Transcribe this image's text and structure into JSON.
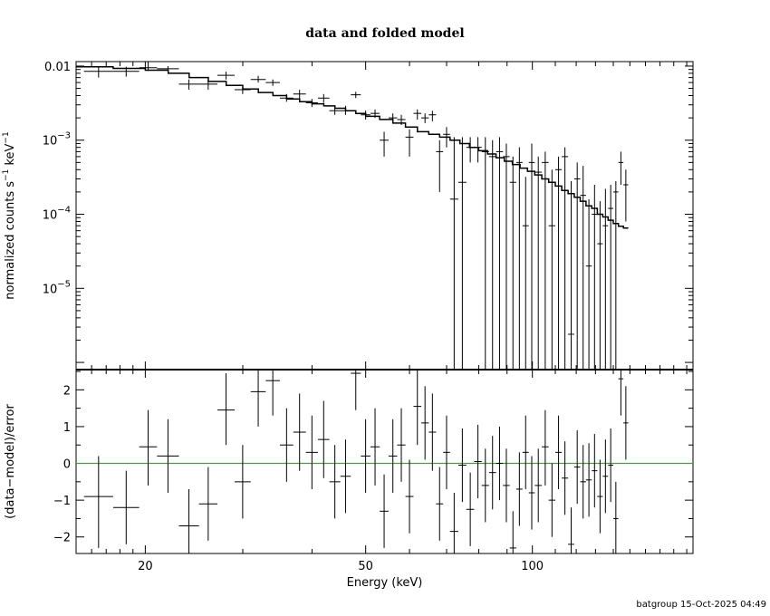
{
  "chart_data": [
    {
      "type": "scatter",
      "title": "data and folded model",
      "xlabel": "Energy (keV)",
      "ylabel": "normalized counts s",
      "ylabel_sup1": "−1",
      "ylabel_mid": " keV",
      "ylabel_sup2": "−1",
      "xscale": "log",
      "yscale": "log",
      "xlim": [
        15,
        195
      ],
      "ylim": [
        8e-07,
        0.0115
      ],
      "x_ticks": [
        {
          "value": 20,
          "label": "20"
        },
        {
          "value": 50,
          "label": "50"
        },
        {
          "value": 100,
          "label": "100"
        }
      ],
      "y_ticks": [
        {
          "value": 0.01,
          "base": "0.01",
          "exp": ""
        },
        {
          "value": 0.001,
          "base": "10",
          "exp": "−3"
        },
        {
          "value": 0.0001,
          "base": "10",
          "exp": "−4"
        },
        {
          "value": 1e-05,
          "base": "10",
          "exp": "−5"
        }
      ],
      "data": [
        [
          15.5,
          17.5,
          0.0085,
          0.007,
          0.0098
        ],
        [
          17.5,
          19.5,
          0.0085,
          0.0072,
          0.0098
        ],
        [
          19.5,
          21,
          0.0095,
          0.0086,
          0.0115
        ],
        [
          21,
          23,
          0.0092,
          0.0085,
          0.01
        ],
        [
          23,
          25,
          0.0057,
          0.0048,
          0.0066
        ],
        [
          25,
          27,
          0.0057,
          0.0048,
          0.0066
        ],
        [
          27,
          29,
          0.0075,
          0.0066,
          0.0084
        ],
        [
          29,
          31,
          0.0048,
          0.0042,
          0.0056
        ],
        [
          31,
          33,
          0.0066,
          0.006,
          0.0074
        ],
        [
          33,
          35,
          0.006,
          0.0054,
          0.0066
        ],
        [
          35,
          37,
          0.0037,
          0.0033,
          0.0042
        ],
        [
          37,
          39,
          0.0042,
          0.0036,
          0.0048
        ],
        [
          39,
          41,
          0.0032,
          0.0028,
          0.0036
        ],
        [
          41,
          43,
          0.0037,
          0.0032,
          0.0042
        ],
        [
          43,
          45,
          0.0025,
          0.0022,
          0.0029
        ],
        [
          45,
          47,
          0.0025,
          0.0022,
          0.0029
        ],
        [
          47,
          49,
          0.0041,
          0.0037,
          0.0045
        ],
        [
          49,
          51,
          0.0022,
          0.0019,
          0.0025
        ],
        [
          51,
          53,
          0.0023,
          0.002,
          0.0026
        ],
        [
          53,
          55,
          0.001,
          0.0006,
          0.0013
        ],
        [
          55,
          57,
          0.002,
          0.0017,
          0.0023
        ],
        [
          57,
          59,
          0.0019,
          0.0016,
          0.0022
        ],
        [
          59,
          61,
          0.0011,
          0.0006,
          0.0014
        ],
        [
          61,
          63,
          0.0023,
          0.0019,
          0.0026
        ],
        [
          63,
          65,
          0.002,
          0.0017,
          0.0023
        ],
        [
          65,
          67,
          0.0022,
          0.0018,
          0.0025
        ],
        [
          67,
          69,
          0.0007,
          0.0002,
          0.001
        ],
        [
          69,
          71,
          0.0012,
          0.0008,
          0.0015
        ],
        [
          71,
          73.5,
          0.00016,
          8e-07,
          0.0011
        ],
        [
          73.5,
          76,
          0.00027,
          8e-07,
          0.0011
        ],
        [
          76,
          78.5,
          0.0008,
          0.0005,
          0.0011
        ],
        [
          78.5,
          81,
          0.0008,
          0.0005,
          0.0011
        ],
        [
          81,
          83.5,
          0.0007,
          8e-07,
          0.0011
        ],
        [
          83.5,
          86,
          0.0006,
          8e-07,
          0.001
        ],
        [
          86,
          88.5,
          0.0007,
          8e-07,
          0.0011
        ],
        [
          88.5,
          91,
          0.0006,
          8e-07,
          0.0009
        ],
        [
          91,
          93.5,
          0.00027,
          8e-07,
          0.0006
        ],
        [
          93.5,
          96,
          0.0005,
          8e-07,
          0.0008
        ],
        [
          96,
          98.5,
          7e-05,
          8e-07,
          0.00032
        ],
        [
          98.5,
          101,
          0.0005,
          8e-07,
          0.0009
        ],
        [
          101,
          104,
          0.00037,
          8e-07,
          0.0006
        ],
        [
          104,
          107,
          0.0005,
          8e-07,
          0.0007
        ],
        [
          107,
          110,
          7e-05,
          8e-07,
          0.0004
        ],
        [
          110,
          113,
          0.0004,
          8e-07,
          0.0006
        ],
        [
          113,
          116,
          0.0006,
          8e-07,
          0.0008
        ],
        [
          116,
          119,
          2.4e-06,
          8e-07,
          0.00028
        ],
        [
          119,
          122,
          0.0003,
          8e-07,
          0.0005
        ],
        [
          122,
          125,
          0.00018,
          8e-07,
          0.00045
        ],
        [
          125,
          128,
          2e-05,
          8e-07,
          0.00016
        ],
        [
          128,
          131,
          0.0001,
          8e-07,
          0.00025
        ],
        [
          131,
          134,
          4e-05,
          8e-07,
          0.00015
        ],
        [
          134,
          137,
          7e-05,
          8e-07,
          0.00022
        ],
        [
          137,
          140,
          0.00012,
          8e-07,
          0.00025
        ],
        [
          140,
          143,
          0.0002,
          8e-07,
          0.00028
        ],
        [
          143,
          146,
          0.0005,
          0.00025,
          0.0007
        ],
        [
          146,
          149,
          0.00025,
          8e-05,
          0.0004
        ]
      ],
      "model": [
        [
          15,
          17.5,
          0.0098
        ],
        [
          17.5,
          20,
          0.0093
        ],
        [
          20,
          22,
          0.0088
        ],
        [
          22,
          24,
          0.008
        ],
        [
          24,
          26,
          0.007
        ],
        [
          26,
          28,
          0.0062
        ],
        [
          28,
          30,
          0.0055
        ],
        [
          30,
          32,
          0.0049
        ],
        [
          32,
          34,
          0.0044
        ],
        [
          34,
          36,
          0.004
        ],
        [
          36,
          38,
          0.0036
        ],
        [
          38,
          40,
          0.0033
        ],
        [
          40,
          42,
          0.0031
        ],
        [
          42,
          44,
          0.0029
        ],
        [
          44,
          46,
          0.0027
        ],
        [
          46,
          48,
          0.0025
        ],
        [
          48,
          50,
          0.0023
        ],
        [
          50,
          53,
          0.0021
        ],
        [
          53,
          56,
          0.0019
        ],
        [
          56,
          59,
          0.0017
        ],
        [
          59,
          62,
          0.0015
        ],
        [
          62,
          65,
          0.0013
        ],
        [
          65,
          68,
          0.0012
        ],
        [
          68,
          71,
          0.0011
        ],
        [
          71,
          74,
          0.001
        ],
        [
          74,
          77,
          0.0009
        ],
        [
          77,
          80,
          0.0008
        ],
        [
          80,
          83,
          0.00072
        ],
        [
          83,
          86,
          0.00065
        ],
        [
          86,
          89,
          0.00058
        ],
        [
          89,
          92,
          0.00052
        ],
        [
          92,
          95,
          0.00047
        ],
        [
          95,
          98,
          0.00042
        ],
        [
          98,
          101,
          0.00038
        ],
        [
          101,
          104,
          0.00034
        ],
        [
          104,
          107,
          0.0003
        ],
        [
          107,
          110,
          0.00027
        ],
        [
          110,
          113,
          0.00024
        ],
        [
          113,
          116,
          0.00021
        ],
        [
          116,
          119,
          0.00019
        ],
        [
          119,
          122,
          0.00017
        ],
        [
          122,
          125,
          0.00015
        ],
        [
          125,
          128,
          0.00013
        ],
        [
          128,
          131,
          0.00012
        ],
        [
          131,
          134,
          0.0001
        ],
        [
          134,
          137,
          9.2e-05
        ],
        [
          137,
          140,
          8.3e-05
        ],
        [
          140,
          143,
          7.5e-05
        ],
        [
          143,
          146,
          6.9e-05
        ],
        [
          146,
          149,
          6.5e-05
        ]
      ]
    },
    {
      "type": "scatter",
      "xlabel": "Energy (keV)",
      "ylabel": "(data−model)/error",
      "xscale": "log",
      "xlim": [
        15,
        195
      ],
      "ylim": [
        -2.45,
        2.55
      ],
      "zero_line_color": "#00cc00",
      "y_ticks": [
        {
          "value": 2,
          "label": "2"
        },
        {
          "value": 1,
          "label": "1"
        },
        {
          "value": 0,
          "label": "0"
        },
        {
          "value": -1,
          "label": "−1"
        },
        {
          "value": -2,
          "label": "−2"
        }
      ],
      "data": [
        [
          15.5,
          17.5,
          -0.9,
          -2.3,
          0.2
        ],
        [
          17.5,
          19.5,
          -1.2,
          -2.2,
          -0.2
        ],
        [
          19.5,
          21,
          0.45,
          -0.6,
          1.45
        ],
        [
          21,
          23,
          0.2,
          -0.8,
          1.2
        ],
        [
          23,
          25,
          -1.7,
          -2.45,
          -0.7
        ],
        [
          25,
          27,
          -1.1,
          -2.1,
          -0.1
        ],
        [
          27,
          29,
          1.45,
          0.5,
          2.45
        ],
        [
          29,
          31,
          -0.5,
          -1.5,
          0.5
        ],
        [
          31,
          33,
          1.95,
          1.0,
          2.55
        ],
        [
          33,
          35,
          2.25,
          1.3,
          2.55
        ],
        [
          35,
          37,
          0.5,
          -0.5,
          1.5
        ],
        [
          37,
          39,
          0.85,
          -0.2,
          1.9
        ],
        [
          39,
          41,
          0.3,
          -0.7,
          1.3
        ],
        [
          41,
          43,
          0.65,
          -0.4,
          1.7
        ],
        [
          43,
          45,
          -0.5,
          -1.5,
          0.5
        ],
        [
          45,
          47,
          -0.35,
          -1.35,
          0.65
        ],
        [
          47,
          49,
          2.45,
          1.45,
          2.55
        ],
        [
          49,
          51,
          0.2,
          -0.8,
          1.2
        ],
        [
          51,
          53,
          0.45,
          -0.6,
          1.5
        ],
        [
          53,
          55,
          -1.3,
          -2.3,
          -0.3
        ],
        [
          55,
          57,
          0.2,
          -0.8,
          1.2
        ],
        [
          57,
          59,
          0.5,
          -0.5,
          1.5
        ],
        [
          59,
          61,
          -0.9,
          -1.9,
          0.1
        ],
        [
          61,
          63,
          1.55,
          0.5,
          2.55
        ],
        [
          63,
          65,
          1.1,
          0.1,
          2.1
        ],
        [
          65,
          67,
          0.85,
          -0.2,
          1.9
        ],
        [
          67,
          69,
          -1.1,
          -2.1,
          -0.1
        ],
        [
          69,
          71,
          0.3,
          -0.7,
          1.3
        ],
        [
          71,
          73.5,
          -1.85,
          -2.45,
          -0.8
        ],
        [
          73.5,
          76,
          -0.05,
          -1.05,
          0.95
        ],
        [
          76,
          78.5,
          -1.25,
          -2.25,
          -0.25
        ],
        [
          78.5,
          81,
          0.05,
          -0.95,
          1.05
        ],
        [
          81,
          83.5,
          -0.6,
          -1.6,
          0.4
        ],
        [
          83.5,
          86,
          -0.25,
          -1.25,
          0.75
        ],
        [
          86,
          88.5,
          0.0,
          -1.0,
          1.0
        ],
        [
          88.5,
          91,
          -0.6,
          -1.6,
          0.4
        ],
        [
          91,
          93.5,
          -2.3,
          -2.45,
          -1.3
        ],
        [
          93.5,
          96,
          -0.7,
          -1.7,
          0.3
        ],
        [
          96,
          98.5,
          0.3,
          -0.7,
          1.3
        ],
        [
          98.5,
          101,
          -0.8,
          -1.8,
          0.2
        ],
        [
          101,
          104,
          -0.6,
          -1.6,
          0.4
        ],
        [
          104,
          107,
          0.45,
          -0.6,
          1.45
        ],
        [
          107,
          110,
          -1.0,
          -2.0,
          0.0
        ],
        [
          110,
          113,
          0.3,
          -0.7,
          1.3
        ],
        [
          113,
          116,
          -0.4,
          -1.4,
          0.6
        ],
        [
          116,
          119,
          -2.2,
          -2.45,
          -1.2
        ],
        [
          119,
          122,
          -0.1,
          -1.1,
          0.9
        ],
        [
          122,
          125,
          -0.5,
          -1.5,
          0.5
        ],
        [
          125,
          128,
          -0.45,
          -1.45,
          0.55
        ],
        [
          128,
          131,
          -0.2,
          -1.2,
          0.8
        ],
        [
          131,
          134,
          -0.9,
          -1.9,
          0.1
        ],
        [
          134,
          137,
          -0.35,
          -1.35,
          0.65
        ],
        [
          137,
          140,
          -0.05,
          -1.05,
          0.95
        ],
        [
          140,
          143,
          -1.5,
          -2.45,
          -0.5
        ],
        [
          143,
          146,
          2.3,
          1.3,
          2.55
        ],
        [
          146,
          149,
          1.1,
          0.1,
          2.1
        ]
      ]
    }
  ],
  "footer": "batgroup 15-Oct-2025 04:49"
}
